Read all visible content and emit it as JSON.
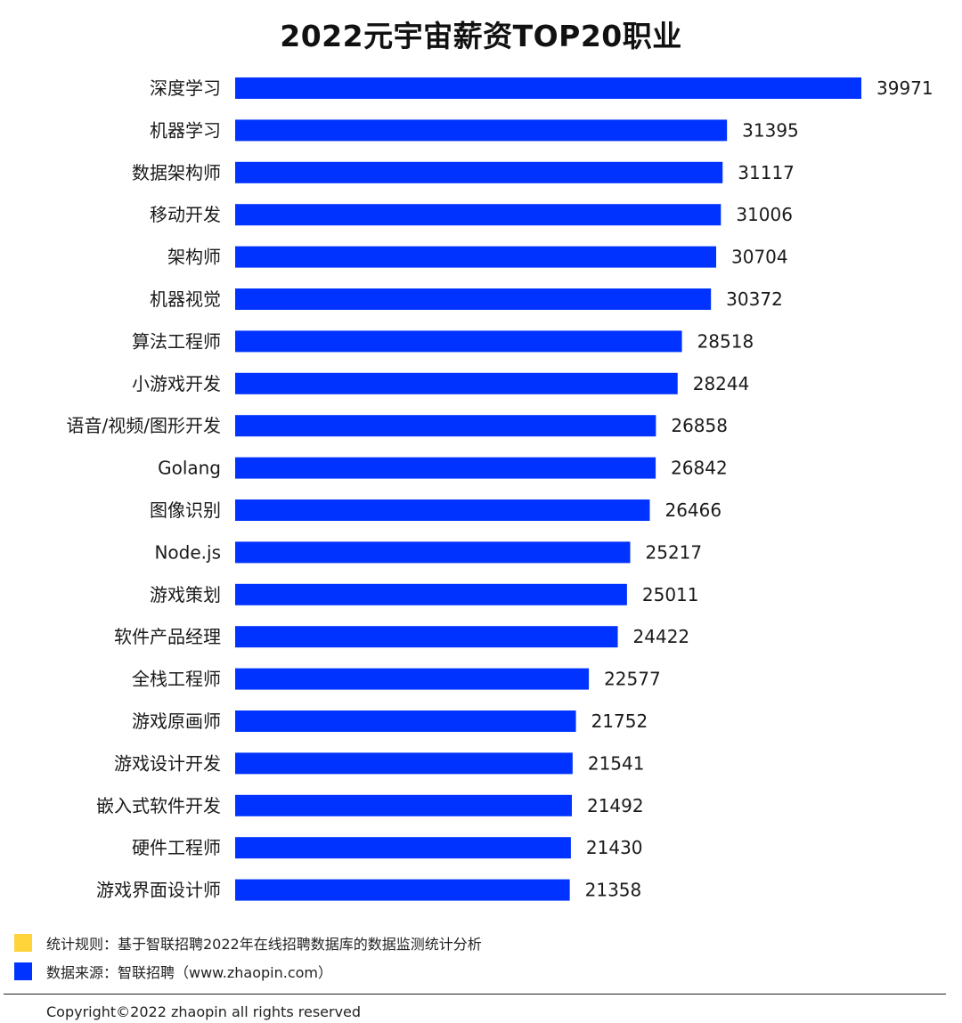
{
  "colors": {
    "bar": "#0033ff",
    "rule_swatch": "#ffd43b",
    "source_swatch": "#0033ff",
    "text": "#1a1a1a"
  },
  "chart_data": {
    "type": "bar",
    "orientation": "horizontal",
    "title": "2022元宇宙薪资TOP20职业",
    "xlabel": "",
    "ylabel": "",
    "grid": false,
    "xlim": [
      0,
      40000
    ],
    "categories": [
      "深度学习",
      "机器学习",
      "数据架构师",
      "移动开发",
      "架构师",
      "机器视觉",
      "算法工程师",
      "小游戏开发",
      "语音/视频/图形开发",
      "Golang",
      "图像识别",
      "Node.js",
      "游戏策划",
      "软件产品经理",
      "全栈工程师",
      "游戏原画师",
      "游戏设计开发",
      "嵌入式软件开发",
      "硬件工程师",
      "游戏界面设计师"
    ],
    "values": [
      39971,
      31395,
      31117,
      31006,
      30704,
      30372,
      28518,
      28244,
      26858,
      26842,
      26466,
      25217,
      25011,
      24422,
      22577,
      21752,
      21541,
      21492,
      21430,
      21358
    ]
  },
  "footnotes": {
    "rule": "统计规则：基于智联招聘2022年在线招聘数据库的数据监测统计分析",
    "source": "数据来源：智联招聘（www.zhaopin.com）"
  },
  "copyright": "Copyright©2022 zhaopin all rights reserved"
}
